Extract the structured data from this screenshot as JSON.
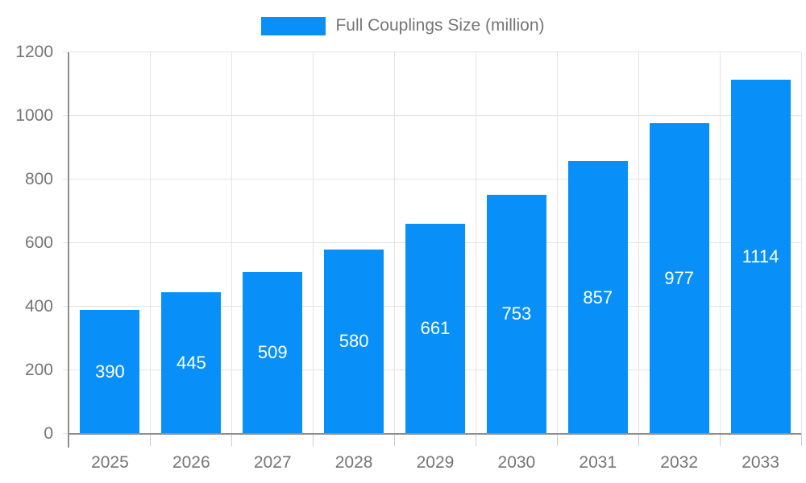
{
  "legend": {
    "label": "Full Couplings Size (million)",
    "swatch_color": "#0990f8"
  },
  "chart_data": {
    "type": "bar",
    "title": "Full Couplings Size (million)",
    "categories": [
      "2025",
      "2026",
      "2027",
      "2028",
      "2029",
      "2030",
      "2031",
      "2032",
      "2033"
    ],
    "series": [
      {
        "name": "Full Couplings Size (million)",
        "values": [
          390,
          445,
          509,
          580,
          661,
          753,
          857,
          977,
          1114
        ]
      }
    ],
    "value_labels_shown": true,
    "xlabel": "",
    "ylabel": "",
    "ylim": [
      0,
      1200
    ],
    "yticks": [
      0,
      200,
      400,
      600,
      800,
      1000,
      1200
    ],
    "grid": true,
    "legend_position": "top"
  },
  "colors": {
    "bar": "#0990f8",
    "gridline": "#e4e4e4",
    "axis": "#8f8f8f",
    "tick": "#cccccc",
    "axis_text": "#757575",
    "bar_label_text": "#ffffff",
    "background": "#ffffff"
  }
}
